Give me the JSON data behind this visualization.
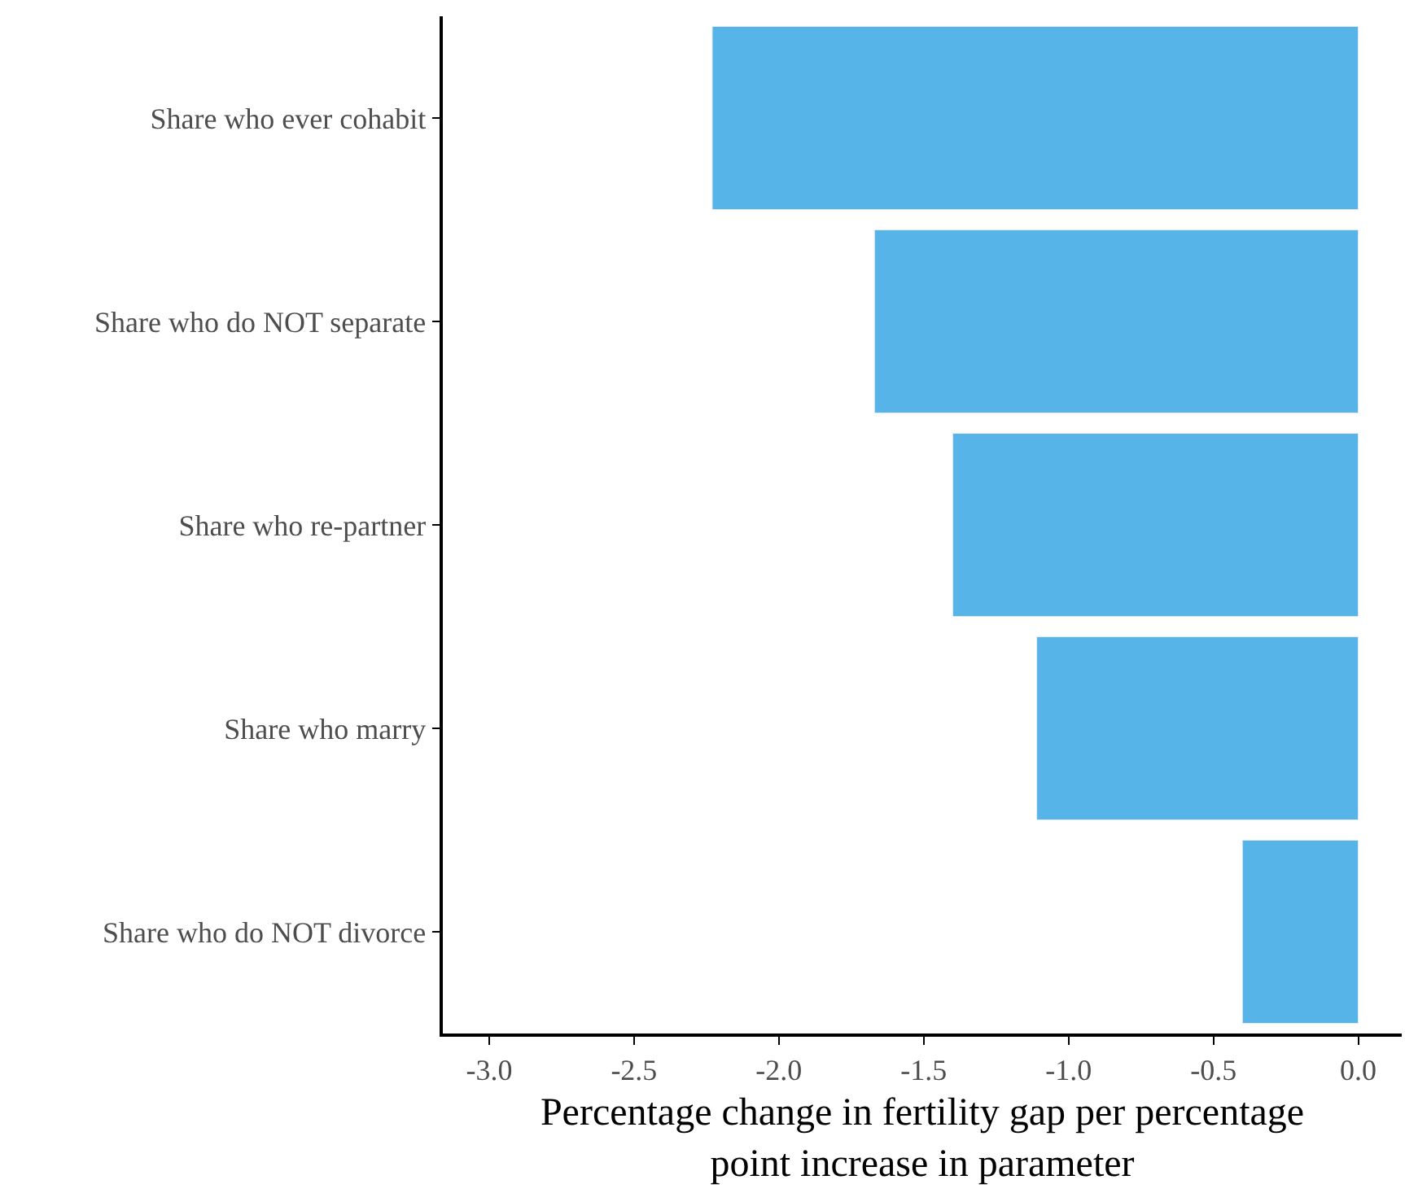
{
  "chart_data": {
    "type": "bar",
    "orientation": "horizontal",
    "xlabel": "Percentage change in fertility gap per percentage\npoint increase in parameter",
    "categories": [
      "Share who ever cohabit",
      "Share who do NOT separate",
      "Share who re-partner",
      "Share who marry",
      "Share who do NOT divorce"
    ],
    "values": [
      -2.23,
      -1.67,
      -1.4,
      -1.11,
      -0.4
    ],
    "color": "#56b4e9",
    "xlim": [
      -3.16,
      0.15
    ],
    "xticks": [
      {
        "value": -3.0,
        "label": "-3.0"
      },
      {
        "value": -2.5,
        "label": "-2.5"
      },
      {
        "value": -2.0,
        "label": "-2.0"
      },
      {
        "value": -1.5,
        "label": "-1.5"
      },
      {
        "value": -1.0,
        "label": "-1.0"
      },
      {
        "value": -0.5,
        "label": "-0.5"
      },
      {
        "value": 0.0,
        "label": "0.0"
      }
    ]
  }
}
